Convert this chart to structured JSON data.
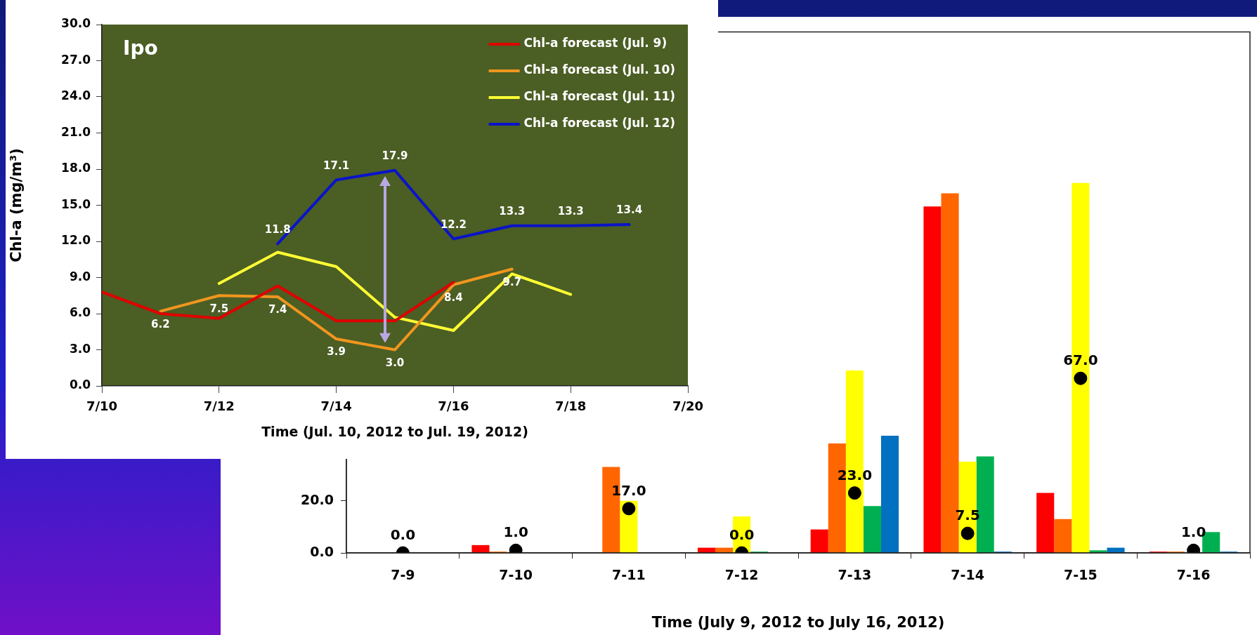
{
  "chart_data": [
    {
      "type": "line",
      "annotations": [
        "Ipo"
      ],
      "xlabel": "Time (Jul. 10, 2012 to Jul. 19, 2012)",
      "ylabel": "Chl-a (mg/m³)",
      "xlim": [
        "2012-07-10",
        "2012-07-20"
      ],
      "xticks": [
        {
          "value": "2012-07-10",
          "label": "7/10"
        },
        {
          "value": "2012-07-12",
          "label": "7/12"
        },
        {
          "value": "2012-07-14",
          "label": "7/14"
        },
        {
          "value": "2012-07-16",
          "label": "7/16"
        },
        {
          "value": "2012-07-18",
          "label": "7/18"
        },
        {
          "value": "2012-07-20",
          "label": "7/20"
        }
      ],
      "ylim": [
        0,
        30
      ],
      "yticks": [
        {
          "value": 0,
          "label": "0.0"
        },
        {
          "value": 3,
          "label": "3.0"
        },
        {
          "value": 6,
          "label": "6.0"
        },
        {
          "value": 9,
          "label": "9.0"
        },
        {
          "value": 12,
          "label": "12.0"
        },
        {
          "value": 15,
          "label": "15.0"
        },
        {
          "value": 18,
          "label": "18.0"
        },
        {
          "value": 21,
          "label": "21.0"
        },
        {
          "value": 24,
          "label": "24.0"
        },
        {
          "value": 27,
          "label": "27.0"
        },
        {
          "value": 30,
          "label": "30.0"
        }
      ],
      "grid": false,
      "legend": "top right",
      "marker": "none",
      "line_style": "solid",
      "series": [
        {
          "name": "Chl-a forecast (Jul. 9)",
          "color": "#e00000",
          "x": [
            "2012-07-10",
            "2012-07-11",
            "2012-07-12",
            "2012-07-13",
            "2012-07-14",
            "2012-07-15",
            "2012-07-16"
          ],
          "values": [
            7.8,
            6.0,
            5.6,
            8.3,
            5.4,
            5.4,
            8.6
          ]
        },
        {
          "name": "Chl-a forecast (Jul. 10)",
          "color": "#f0961e",
          "x": [
            "2012-07-11",
            "2012-07-12",
            "2012-07-13",
            "2012-07-14",
            "2012-07-15",
            "2012-07-16",
            "2012-07-17"
          ],
          "values": [
            6.2,
            7.5,
            7.4,
            3.9,
            3.0,
            8.4,
            9.7
          ],
          "value_labels": [
            "6.2",
            "7.5",
            "7.4",
            "3.9",
            "3.0",
            "8.4",
            "9.7"
          ]
        },
        {
          "name": "Chl-a forecast (Jul. 11)",
          "color": "#ffff33",
          "x": [
            "2012-07-12",
            "2012-07-13",
            "2012-07-14",
            "2012-07-15",
            "2012-07-16",
            "2012-07-17",
            "2012-07-18"
          ],
          "values": [
            8.5,
            11.1,
            9.9,
            5.7,
            4.6,
            9.3,
            7.6
          ]
        },
        {
          "name": "Chl-a forecast (Jul. 12)",
          "color": "#0a14c8",
          "x": [
            "2012-07-13",
            "2012-07-14",
            "2012-07-15",
            "2012-07-16",
            "2012-07-17",
            "2012-07-18",
            "2012-07-19"
          ],
          "values": [
            11.8,
            17.1,
            17.9,
            12.2,
            13.3,
            13.3,
            13.4
          ],
          "value_labels": [
            "11.8",
            "17.1",
            "17.9",
            "12.2",
            "13.3",
            "13.3",
            "13.4"
          ]
        }
      ]
    },
    {
      "type": "bar",
      "xlabel": "Time (July 9, 2012 to July 16, 2012)",
      "categories": [
        "7-9",
        "7-10",
        "7-11",
        "7-12",
        "7-13",
        "7-14",
        "7-15",
        "7-16"
      ],
      "ylim": [
        0,
        200
      ],
      "yticks": [
        {
          "value": 0,
          "label": "0.0"
        },
        {
          "value": 20,
          "label": "20.0"
        }
      ],
      "grid": false,
      "legend": false,
      "marker": "circle",
      "series": [
        {
          "color": "#ff0000",
          "values": [
            0,
            3,
            null,
            2,
            9,
            133,
            23,
            0.5
          ]
        },
        {
          "color": "#ff6600",
          "values": [
            0,
            0.5,
            33,
            2,
            42,
            138,
            13,
            0.5
          ]
        },
        {
          "color": "#ffff00",
          "values": [
            0,
            0,
            20,
            14,
            70,
            35,
            142,
            null
          ]
        },
        {
          "color": "#00b050",
          "values": [
            0,
            0,
            0,
            0.5,
            18,
            37,
            1,
            8
          ]
        },
        {
          "color": "#0070c0",
          "values": [
            0,
            0,
            0,
            0,
            45,
            0.5,
            2,
            0.5
          ]
        },
        {
          "type": "scatter",
          "color": "#000000",
          "x": [
            "7-9",
            "7-10",
            "7-11",
            "7-12",
            "7-13",
            "7-14",
            "7-15",
            "7-16"
          ],
          "values": [
            0.0,
            1.0,
            17.0,
            0.0,
            23.0,
            7.5,
            67.0,
            1.0
          ],
          "value_labels": [
            "0.0",
            "1.0",
            "17.0",
            "0.0",
            "23.0",
            "7.5",
            "67.0",
            "1.0"
          ]
        }
      ]
    }
  ]
}
